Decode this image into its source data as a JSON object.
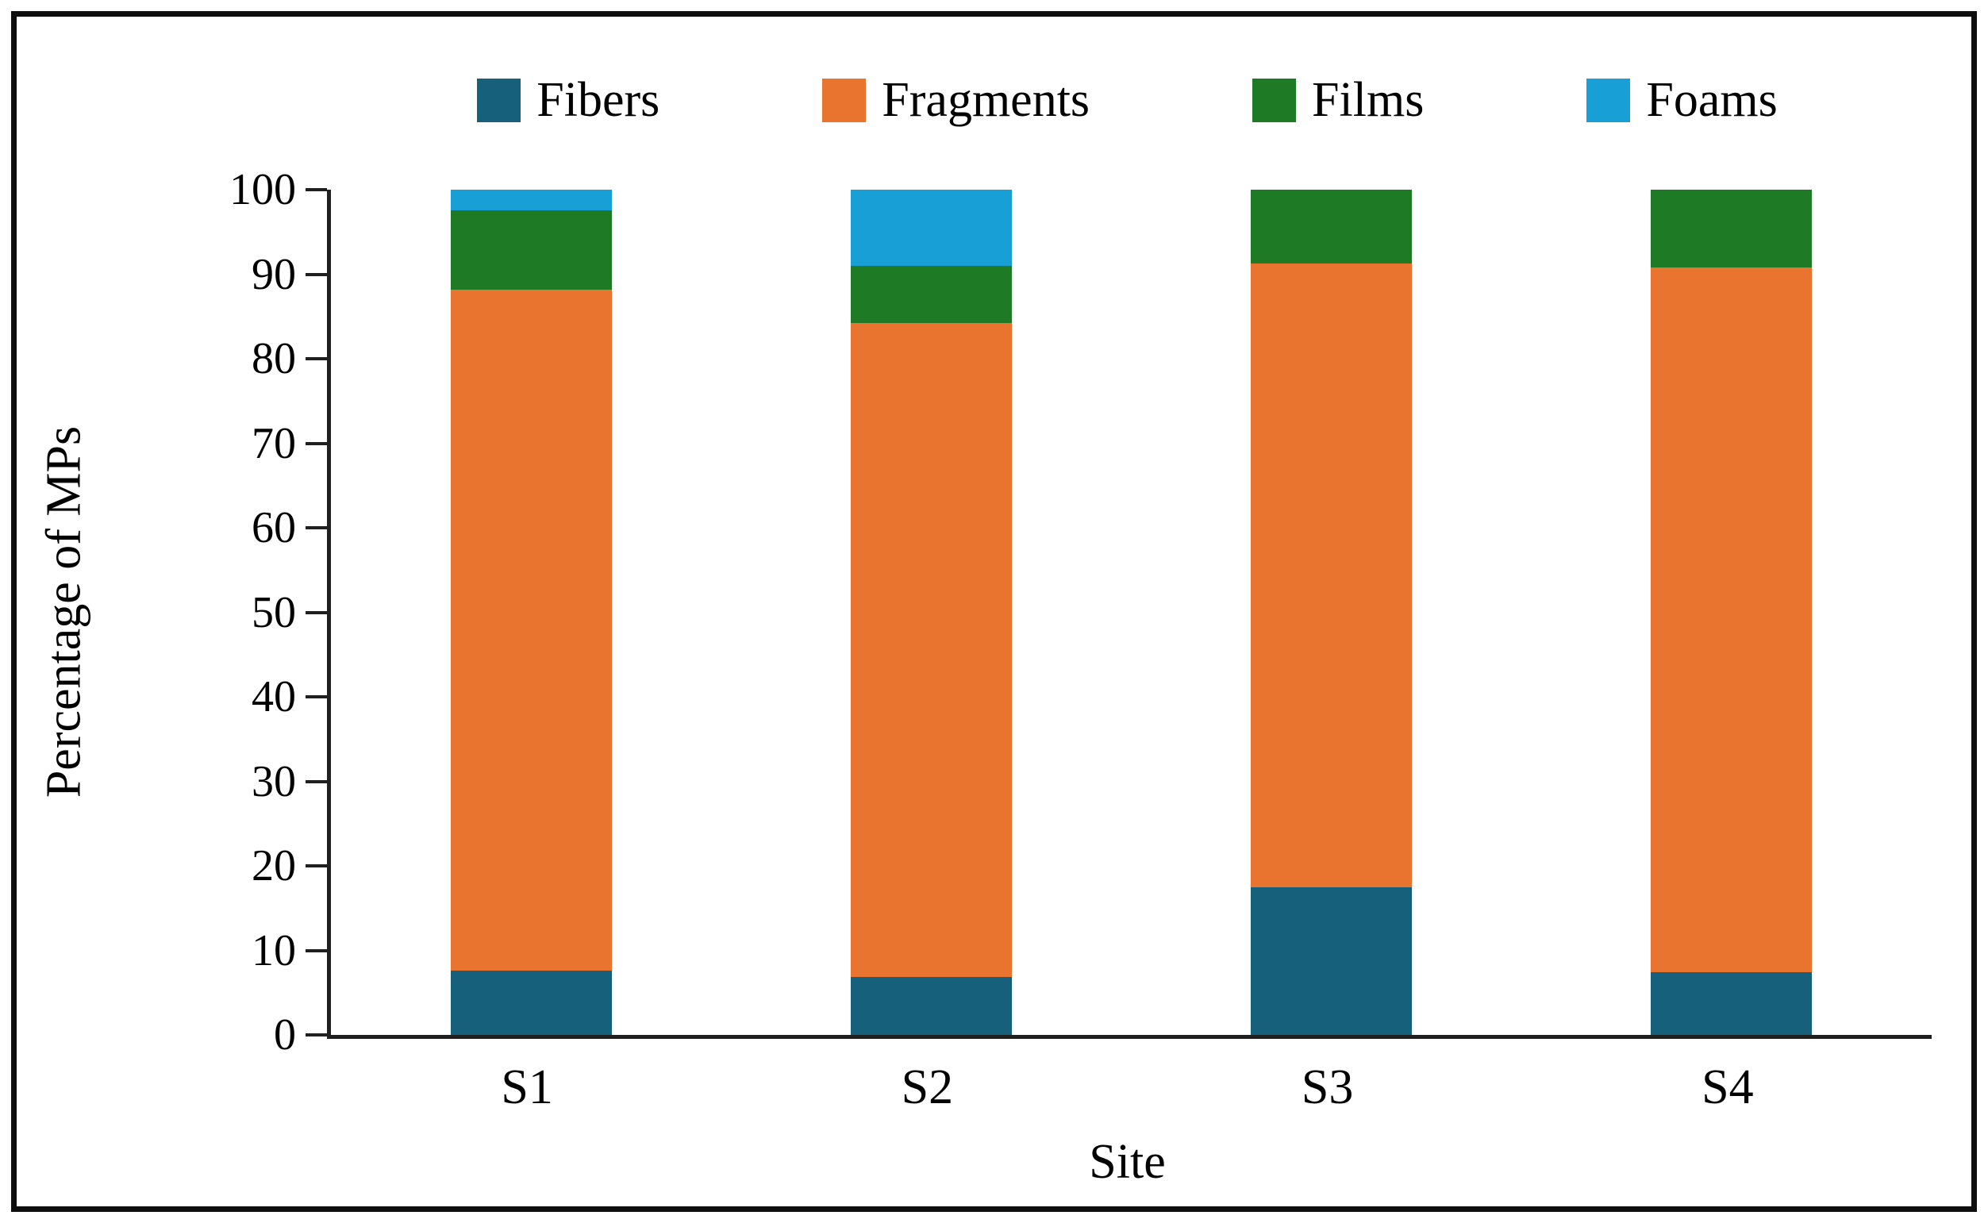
{
  "chart_data": {
    "type": "bar",
    "stacked": true,
    "title": "",
    "xlabel": "Site",
    "ylabel": "Percentage of MPs",
    "categories": [
      "S1",
      "S2",
      "S3",
      "S4"
    ],
    "series": [
      {
        "name": "Fibers",
        "color": "#16607c",
        "values": [
          7.6,
          6.9,
          17.5,
          7.4
        ]
      },
      {
        "name": "Fragments",
        "color": "#e8742f",
        "values": [
          80.6,
          77.3,
          73.8,
          83.4
        ]
      },
      {
        "name": "Films",
        "color": "#1f7a26",
        "values": [
          9.4,
          6.8,
          8.7,
          9.2
        ]
      },
      {
        "name": "Foams",
        "color": "#18a0d6",
        "values": [
          2.4,
          9.0,
          0,
          0
        ]
      }
    ],
    "ylim": [
      0,
      100
    ],
    "yticks": [
      0,
      10,
      20,
      30,
      40,
      50,
      60,
      70,
      80,
      90,
      100
    ],
    "legend_position": "top",
    "grid": false,
    "axis_color": "#1f1f1f",
    "text_color": "#000000",
    "background_color": "#ffffff",
    "frame_color": "#0e0e0e"
  }
}
